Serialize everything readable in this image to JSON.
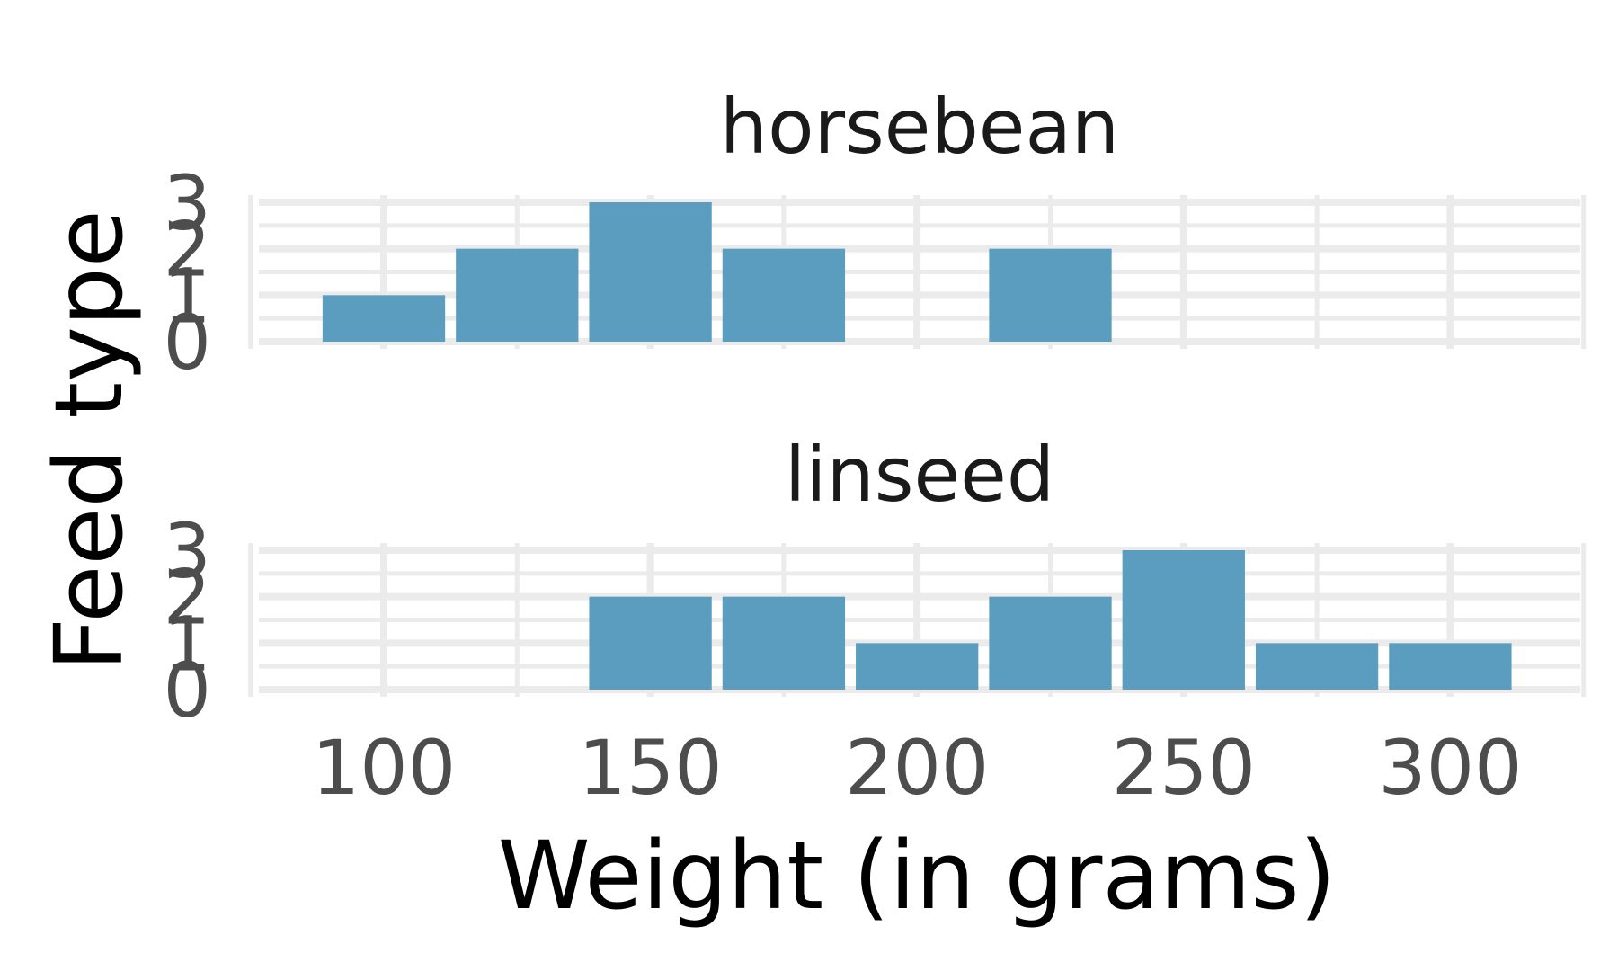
{
  "chart_data": {
    "type": "bar",
    "subtype": "faceted-histogram",
    "xlabel": "Weight (in grams)",
    "ylabel": "Feed type",
    "x_ticks": [
      100,
      150,
      200,
      250,
      300
    ],
    "y_ticks": [
      0,
      1,
      2,
      3
    ],
    "bin_width": 25,
    "bin_centers": [
      100,
      125,
      150,
      175,
      200,
      225,
      250,
      275,
      300
    ],
    "xlim": [
      75,
      325
    ],
    "ylim": [
      0,
      3
    ],
    "grid": true,
    "bar_color": "#5a9dbf",
    "grid_color": "#ebebeb",
    "panels": [
      {
        "label": "horsebean",
        "counts": [
          1,
          2,
          3,
          2,
          0,
          2,
          0,
          0,
          0
        ]
      },
      {
        "label": "linseed",
        "counts": [
          0,
          0,
          2,
          2,
          1,
          2,
          3,
          1,
          1
        ]
      }
    ]
  }
}
